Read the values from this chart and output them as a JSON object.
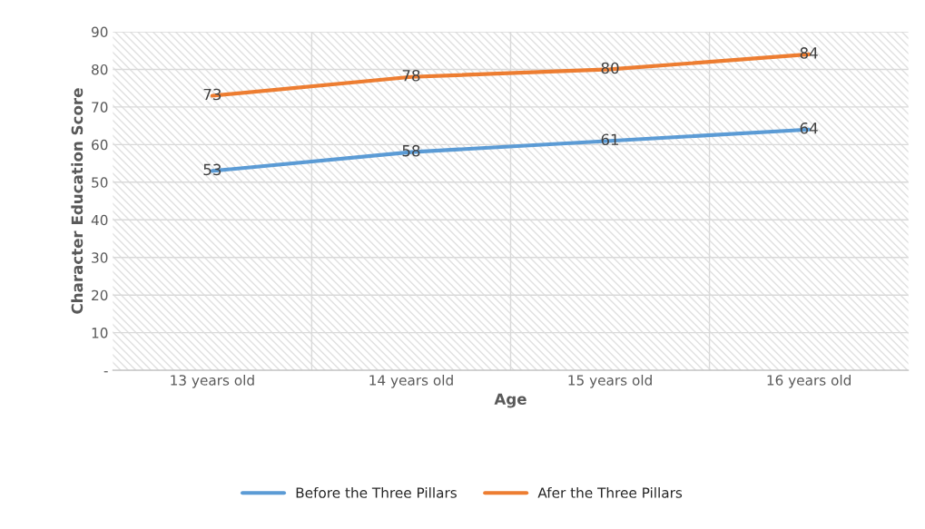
{
  "chart_data": {
    "type": "line",
    "xlabel": "Age",
    "ylabel": "Character Education Score",
    "categories": [
      "13 years old",
      "14 years old",
      "15 years old",
      "16 years old"
    ],
    "series": [
      {
        "name": "Before the Three Pillars",
        "color": "#5b9bd5",
        "values": [
          53,
          58,
          61,
          64
        ]
      },
      {
        "name": "Afer the Three Pillars",
        "color": "#ed7d31",
        "values": [
          73,
          78,
          80,
          84
        ]
      }
    ],
    "ylim": [
      0,
      90
    ],
    "yticks": [
      {
        "value": 0,
        "label": "-"
      },
      10,
      20,
      30,
      40,
      50,
      60,
      70,
      80,
      90
    ],
    "grid": true,
    "legend": "bottom",
    "data_labels": true,
    "marker": "none",
    "line_style": "solid"
  }
}
